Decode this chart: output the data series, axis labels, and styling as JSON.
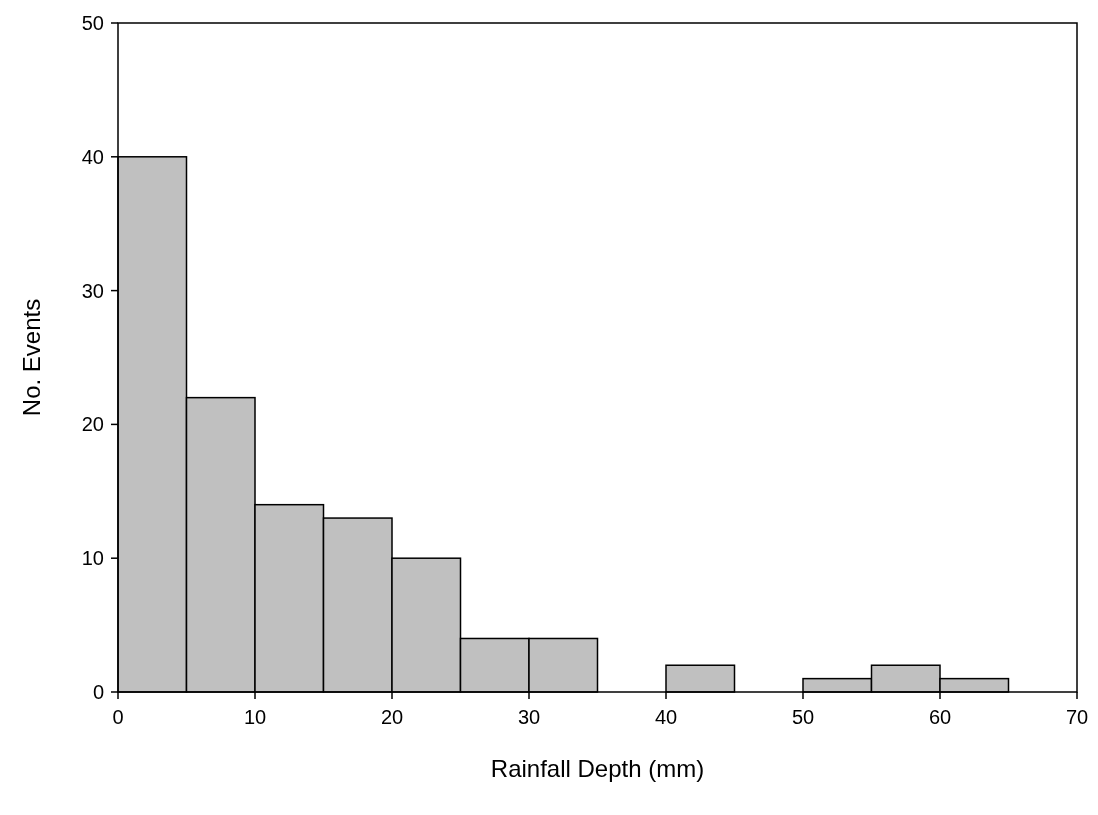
{
  "chart_data": {
    "type": "histogram",
    "xlabel": "Rainfall Depth (mm)",
    "ylabel": "No. Events",
    "bins": [
      0,
      5,
      10,
      15,
      20,
      25,
      30,
      35,
      40,
      45,
      50,
      55,
      60,
      65
    ],
    "values": [
      40,
      22,
      14,
      13,
      10,
      4,
      4,
      0,
      2,
      0,
      1,
      2,
      1
    ],
    "color": "#c0c0c0",
    "xlim": [
      0,
      70
    ],
    "xticks": [
      0,
      10,
      20,
      30,
      40,
      50,
      60,
      70
    ],
    "ylim": [
      0,
      50
    ],
    "yticks": [
      0,
      10,
      20,
      30,
      40,
      50
    ],
    "grid": false
  }
}
